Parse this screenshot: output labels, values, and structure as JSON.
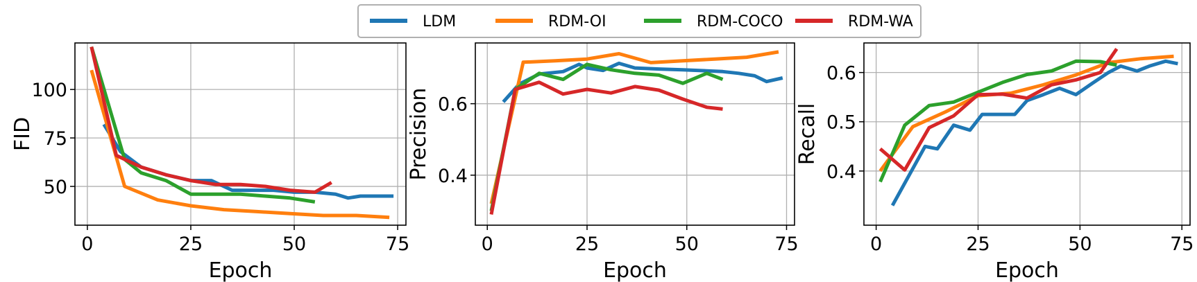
{
  "legend": {
    "placement": "top-center",
    "entries": [
      {
        "label": "LDM",
        "color": "#1f77b4"
      },
      {
        "label": "RDM-OI",
        "color": "#ff7f0e"
      },
      {
        "label": "RDM-COCO",
        "color": "#2ca02c"
      },
      {
        "label": "RDM-WA",
        "color": "#d62728"
      }
    ]
  },
  "chart_data": [
    {
      "type": "line",
      "ylabel": "FID",
      "xlabel": "Epoch",
      "grid": true,
      "xlim": [
        -3,
        77
      ],
      "ylim": [
        30,
        124
      ],
      "xticks": [
        0,
        25,
        50,
        75
      ],
      "yticks": [
        50,
        75,
        100
      ],
      "ytick_labels": [
        "50",
        "75",
        "100"
      ],
      "series": [
        {
          "name": "LDM",
          "color": "#1f77b4",
          "x": [
            4,
            8,
            13,
            19,
            25,
            30,
            35,
            40,
            45,
            50,
            55,
            60,
            63,
            66,
            70,
            74
          ],
          "y": [
            82,
            68,
            60,
            56,
            53,
            53,
            48,
            48,
            48,
            47,
            47,
            46,
            44,
            45,
            45,
            45
          ]
        },
        {
          "name": "RDM-OI",
          "color": "#ff7f0e",
          "x": [
            1,
            9,
            17,
            25,
            33,
            41,
            49,
            57,
            65,
            73
          ],
          "y": [
            110,
            50,
            43,
            40,
            38,
            37,
            36,
            35,
            35,
            34
          ]
        },
        {
          "name": "RDM-COCO",
          "color": "#2ca02c",
          "x": [
            1,
            9,
            13,
            19,
            25,
            30,
            37,
            43,
            49,
            55
          ],
          "y": [
            122,
            64,
            57,
            53,
            46,
            46,
            46,
            45,
            44,
            42
          ]
        },
        {
          "name": "RDM-WA",
          "color": "#d62728",
          "x": [
            1,
            7,
            13,
            19,
            25,
            31,
            37,
            43,
            49,
            55,
            59
          ],
          "y": [
            122,
            66,
            60,
            56,
            53,
            51,
            51,
            50,
            48,
            47,
            52
          ]
        }
      ]
    },
    {
      "type": "line",
      "ylabel": "Precision",
      "xlabel": "Epoch",
      "grid": true,
      "xlim": [
        -3,
        77
      ],
      "ylim": [
        0.26,
        0.77
      ],
      "xticks": [
        0,
        25,
        50,
        75
      ],
      "yticks": [
        0.4,
        0.6
      ],
      "ytick_labels": [
        "0.4",
        "0.6"
      ],
      "series": [
        {
          "name": "LDM",
          "color": "#1f77b4",
          "x": [
            4,
            8,
            13,
            19,
            23,
            25,
            29,
            33,
            37,
            43,
            49,
            55,
            59,
            63,
            67,
            70,
            74
          ],
          "y": [
            0.605,
            0.655,
            0.683,
            0.69,
            0.71,
            0.7,
            0.693,
            0.713,
            0.7,
            0.697,
            0.695,
            0.692,
            0.69,
            0.685,
            0.678,
            0.662,
            0.672
          ]
        },
        {
          "name": "RDM-OI",
          "color": "#ff7f0e",
          "x": [
            1,
            9,
            17,
            25,
            33,
            41,
            49,
            57,
            65,
            73
          ],
          "y": [
            0.32,
            0.716,
            0.72,
            0.725,
            0.74,
            0.715,
            0.72,
            0.725,
            0.73,
            0.745
          ]
        },
        {
          "name": "RDM-COCO",
          "color": "#2ca02c",
          "x": [
            1,
            7,
            13,
            19,
            25,
            31,
            37,
            43,
            49,
            55,
            59
          ],
          "y": [
            0.3,
            0.64,
            0.685,
            0.668,
            0.71,
            0.695,
            0.685,
            0.68,
            0.657,
            0.685,
            0.668
          ]
        },
        {
          "name": "RDM-WA",
          "color": "#d62728",
          "x": [
            1,
            7,
            13,
            19,
            25,
            31,
            37,
            43,
            49,
            55,
            59
          ],
          "y": [
            0.29,
            0.64,
            0.66,
            0.627,
            0.64,
            0.63,
            0.648,
            0.638,
            0.613,
            0.59,
            0.585
          ]
        }
      ]
    },
    {
      "type": "line",
      "ylabel": "Recall",
      "xlabel": "Epoch",
      "grid": true,
      "xlim": [
        -3,
        77
      ],
      "ylim": [
        0.29,
        0.66
      ],
      "xticks": [
        0,
        25,
        50,
        75
      ],
      "yticks": [
        0.4,
        0.5,
        0.6
      ],
      "ytick_labels": [
        "0.4",
        "0.5",
        "0.6"
      ],
      "series": [
        {
          "name": "LDM",
          "color": "#1f77b4",
          "x": [
            4,
            8,
            12,
            15,
            19,
            23,
            26,
            30,
            34,
            37,
            41,
            45,
            49,
            53,
            57,
            60,
            64,
            67,
            71,
            74
          ],
          "y": [
            0.33,
            0.39,
            0.45,
            0.445,
            0.493,
            0.483,
            0.515,
            0.515,
            0.515,
            0.543,
            0.555,
            0.568,
            0.555,
            0.578,
            0.6,
            0.613,
            0.603,
            0.613,
            0.623,
            0.618
          ]
        },
        {
          "name": "RDM-OI",
          "color": "#ff7f0e",
          "x": [
            1,
            9,
            17,
            25,
            33,
            41,
            49,
            57,
            65,
            73
          ],
          "y": [
            0.4,
            0.49,
            0.52,
            0.553,
            0.558,
            0.575,
            0.595,
            0.62,
            0.628,
            0.633
          ]
        },
        {
          "name": "RDM-COCO",
          "color": "#2ca02c",
          "x": [
            1,
            7,
            13,
            19,
            25,
            31,
            37,
            43,
            49,
            55,
            59
          ],
          "y": [
            0.378,
            0.493,
            0.533,
            0.54,
            0.56,
            0.58,
            0.596,
            0.603,
            0.623,
            0.622,
            0.615
          ]
        },
        {
          "name": "RDM-WA",
          "color": "#d62728",
          "x": [
            1,
            7,
            13,
            19,
            25,
            31,
            37,
            43,
            49,
            55,
            59
          ],
          "y": [
            0.445,
            0.402,
            0.488,
            0.512,
            0.555,
            0.556,
            0.548,
            0.575,
            0.585,
            0.6,
            0.648
          ]
        }
      ]
    }
  ]
}
